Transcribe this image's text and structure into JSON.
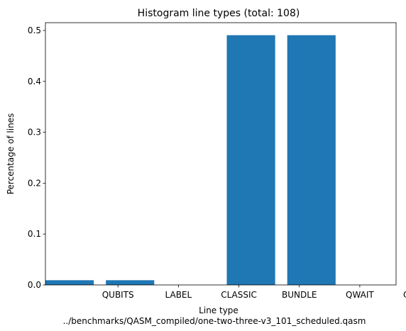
{
  "chart_data": {
    "type": "bar",
    "title": "Histogram line types (total: 108)",
    "xlabel": "Line type",
    "xlabel_sub": "../benchmarks/QASM_compiled/one-two-three-v3_101_scheduled.qasm",
    "ylabel": "Percentage of lines",
    "bars": [
      {
        "x": 1,
        "value": 0.00926
      },
      {
        "x": 2,
        "value": 0.00926
      },
      {
        "x": 3,
        "value": 0.0
      },
      {
        "x": 4,
        "value": 0.4907
      },
      {
        "x": 5,
        "value": 0.4907
      },
      {
        "x": 6,
        "value": 0.0
      }
    ],
    "tick_labels": [
      {
        "pos": 1.8,
        "label": "QUBITS"
      },
      {
        "pos": 2.8,
        "label": "LABEL"
      },
      {
        "pos": 3.8,
        "label": "CLASSIC"
      },
      {
        "pos": 4.8,
        "label": "BUNDLE"
      },
      {
        "pos": 5.8,
        "label": "QWAIT"
      },
      {
        "pos": 6.8,
        "label": "QWAITR"
      }
    ],
    "xlim": [
      0.6,
      6.4
    ],
    "ylim": [
      0,
      0.5153
    ],
    "yticks": [
      0.0,
      0.1,
      0.2,
      0.3,
      0.4,
      0.5
    ],
    "ytick_labels": [
      "0.0",
      "0.1",
      "0.2",
      "0.3",
      "0.4",
      "0.5"
    ],
    "bar_width": 0.8,
    "color": "#1f77b4",
    "grid": false
  }
}
